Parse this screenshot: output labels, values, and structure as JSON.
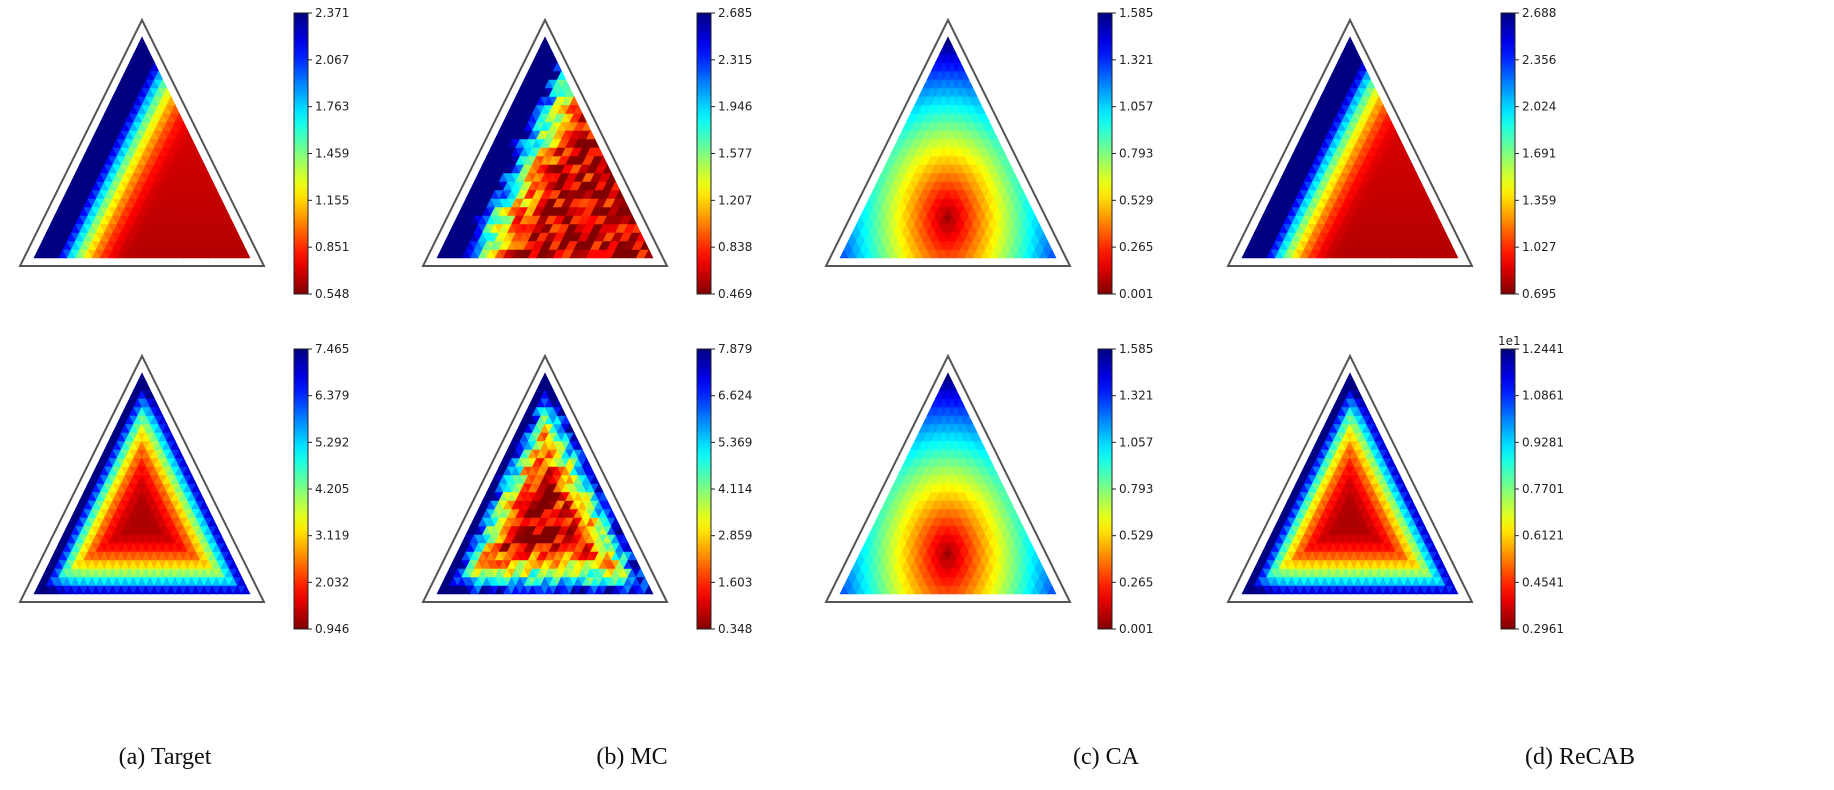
{
  "captions": {
    "a": "(a) Target",
    "b": "(b) MC",
    "c": "(c) CA",
    "d": "(d) ReCAB"
  },
  "colormap": "jet_r",
  "chart_data": [
    {
      "type": "heatmap",
      "name": "target-top",
      "pattern": "left-edge-high",
      "colorbar_ticks": [
        "2.371",
        "2.067",
        "1.763",
        "1.459",
        "1.155",
        "0.851",
        "0.548"
      ],
      "range": [
        0.548,
        2.371
      ],
      "min_location": "bottom-right",
      "max_location": "left-edge"
    },
    {
      "type": "heatmap",
      "name": "mc-top",
      "pattern": "left-edge-high-noisy",
      "colorbar_ticks": [
        "2.685",
        "2.315",
        "1.946",
        "1.577",
        "1.207",
        "0.838",
        "0.469"
      ],
      "range": [
        0.469,
        2.685
      ],
      "min_location": "bottom-right",
      "max_location": "left-edge"
    },
    {
      "type": "heatmap",
      "name": "ca-top",
      "pattern": "top-high",
      "colorbar_ticks": [
        "1.585",
        "1.321",
        "1.057",
        "0.793",
        "0.529",
        "0.265",
        "0.001"
      ],
      "range": [
        0.001,
        1.585
      ],
      "min_location": "lower-center",
      "max_location": "top"
    },
    {
      "type": "heatmap",
      "name": "recab-top",
      "pattern": "left-edge-high",
      "colorbar_ticks": [
        "2.688",
        "2.356",
        "2.024",
        "1.691",
        "1.359",
        "1.027",
        "0.695"
      ],
      "range": [
        0.695,
        2.688
      ],
      "min_location": "bottom-right",
      "max_location": "left-edge"
    },
    {
      "type": "heatmap",
      "name": "target-bottom",
      "pattern": "edges-high",
      "colorbar_ticks": [
        "7.465",
        "6.379",
        "5.292",
        "4.205",
        "3.119",
        "2.032",
        "0.946"
      ],
      "range": [
        0.946,
        7.465
      ],
      "min_location": "center",
      "max_location": "left-edge"
    },
    {
      "type": "heatmap",
      "name": "mc-bottom",
      "pattern": "edges-high-noisy",
      "colorbar_ticks": [
        "7.879",
        "6.624",
        "5.369",
        "4.114",
        "2.859",
        "1.603",
        "0.348"
      ],
      "range": [
        0.348,
        7.879
      ],
      "min_location": "center",
      "max_location": "left-edge"
    },
    {
      "type": "heatmap",
      "name": "ca-bottom",
      "pattern": "top-high",
      "colorbar_ticks": [
        "1.585",
        "1.321",
        "1.057",
        "0.793",
        "0.529",
        "0.265",
        "0.001"
      ],
      "range": [
        0.001,
        1.585
      ],
      "min_location": "lower-center",
      "max_location": "top"
    },
    {
      "type": "heatmap",
      "name": "recab-bottom",
      "pattern": "edges-high",
      "colorbar_ticks": [
        "1.2441",
        "1.0861",
        "0.9281",
        "0.7701",
        "0.6121",
        "0.4541",
        "0.2961"
      ],
      "colorbar_offset_label": "1e1",
      "range": [
        2.961,
        12.441
      ],
      "min_location": "center",
      "max_location": "left-edge"
    }
  ]
}
